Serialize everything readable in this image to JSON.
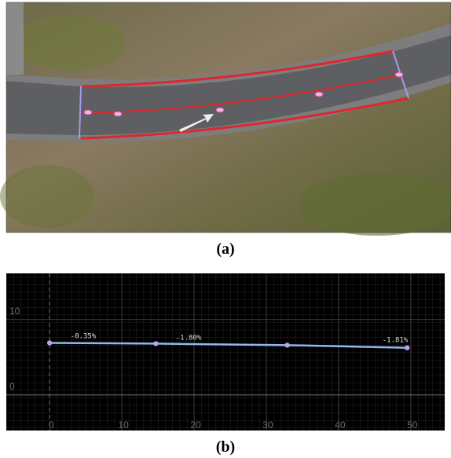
{
  "figure": {
    "caption_a": "(a)",
    "caption_b": "(b)"
  },
  "chart_data": {
    "type": "line",
    "series": [
      {
        "color": "#8fb8ee",
        "x": [
          0,
          14.7,
          32.9,
          49.5
        ],
        "values": [
          6.9,
          6.8,
          6.6,
          6.25
        ]
      }
    ],
    "annotations": [
      "-0.35%",
      "-1.80%",
      "-1.81%"
    ],
    "xlim": [
      -6,
      54.7
    ],
    "ylim": [
      -4.7,
      16.1
    ],
    "xticks": [
      0,
      10,
      20,
      30,
      40,
      50
    ],
    "yticks": [
      0,
      10
    ],
    "grid": true
  }
}
